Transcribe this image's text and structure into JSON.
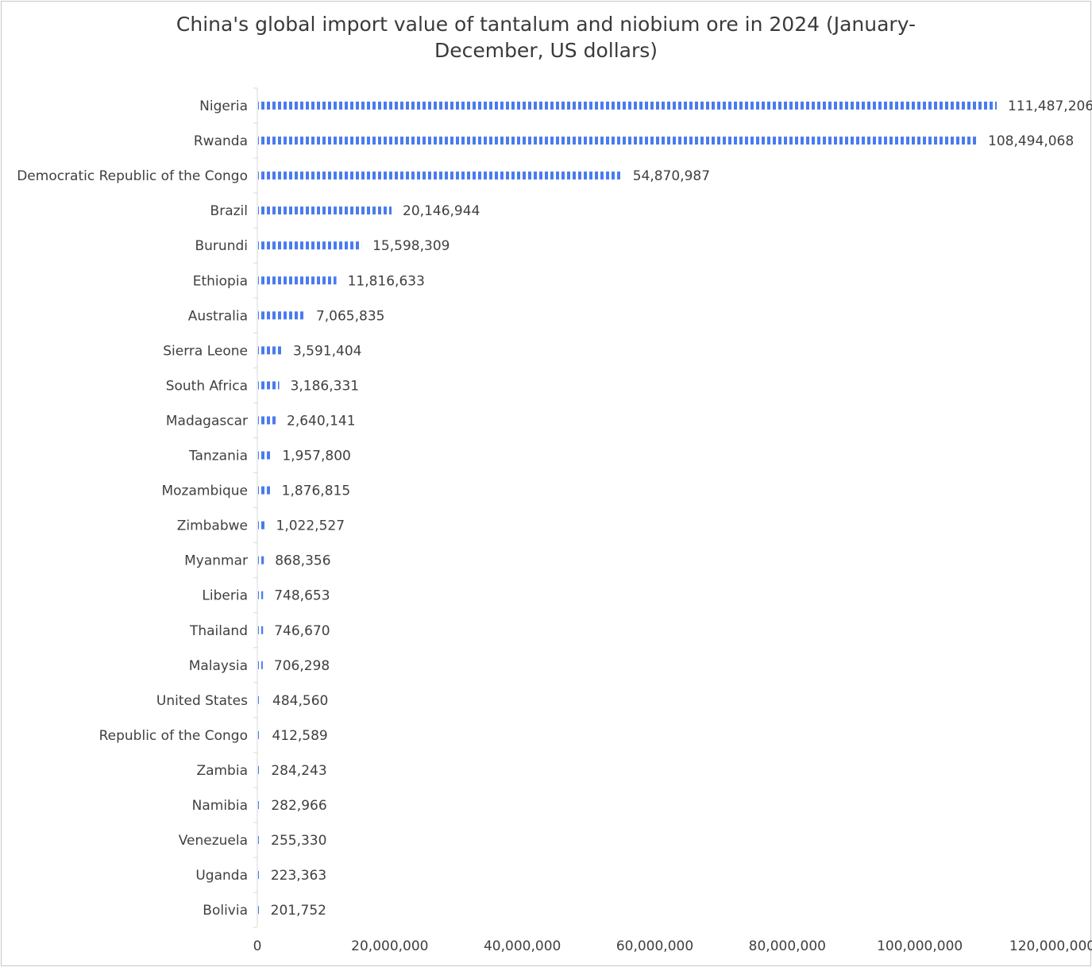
{
  "chart_data": {
    "type": "bar",
    "orientation": "horizontal",
    "title_line1": "China's global import value of tantalum and niobium ore in 2024 (January-",
    "title_line2": "December, US dollars)",
    "categories": [
      "Nigeria",
      "Rwanda",
      "Democratic Republic of the Congo",
      "Brazil",
      "Burundi",
      "Ethiopia",
      "Australia",
      "Sierra Leone",
      "South Africa",
      "Madagascar",
      "Tanzania",
      "Mozambique",
      "Zimbabwe",
      "Myanmar",
      "Liberia",
      "Thailand",
      "Malaysia",
      "United States",
      "Republic of the Congo",
      "Zambia",
      "Namibia",
      "Venezuela",
      "Uganda",
      "Bolivia"
    ],
    "values": [
      111487206,
      108494068,
      54870987,
      20146944,
      15598309,
      11816633,
      7065835,
      3591404,
      3186331,
      2640141,
      1957800,
      1876815,
      1022527,
      868356,
      748653,
      746670,
      706298,
      484560,
      412589,
      284243,
      282966,
      255330,
      223363,
      201752
    ],
    "value_labels": [
      "111,487,206",
      "108,494,068",
      "54,870,987",
      "20,146,944",
      "15,598,309",
      "11,816,633",
      "7,065,835",
      "3,591,404",
      "3,186,331",
      "2,640,141",
      "1,957,800",
      "1,876,815",
      "1,022,527",
      "868,356",
      "748,653",
      "746,670",
      "706,298",
      "484,560",
      "412,589",
      "284,243",
      "282,966",
      "255,330",
      "223,363",
      "201,752"
    ],
    "xlim": [
      0,
      120000000
    ],
    "x_ticks": [
      0,
      20000000,
      40000000,
      60000000,
      80000000,
      100000000,
      120000000
    ],
    "x_tick_labels": [
      "0",
      "20,000,000",
      "40,000,000",
      "60,000,000",
      "80,000,000",
      "100,000,000",
      "120,000,000"
    ],
    "grid": false,
    "legend": "none",
    "bar_color": "#4a7bef",
    "bar_pattern": "vertical stripes"
  }
}
